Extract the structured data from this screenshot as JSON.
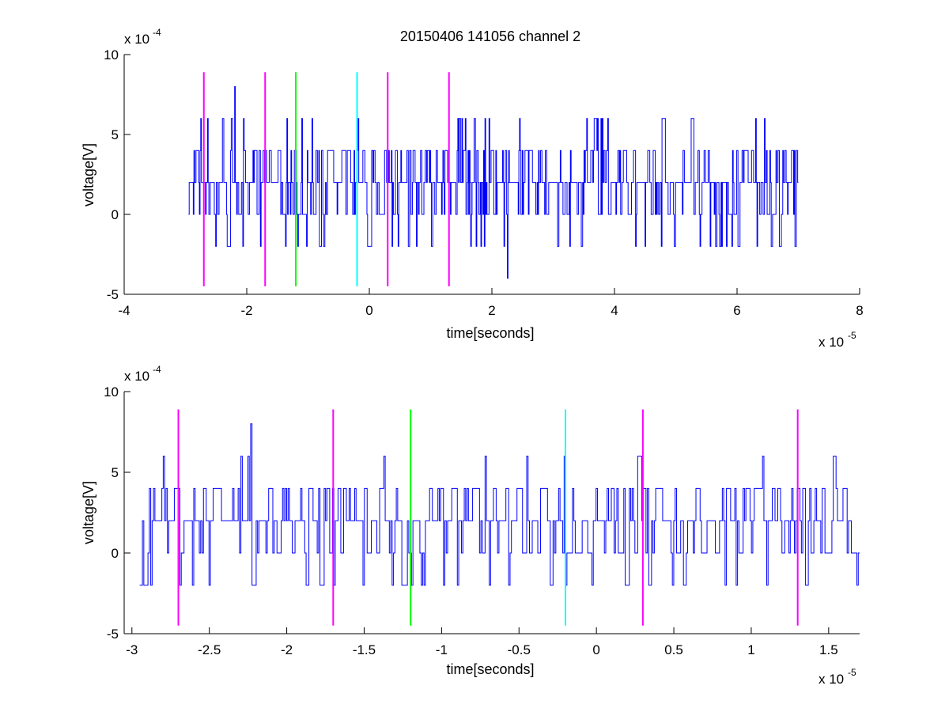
{
  "chart_data": [
    {
      "type": "line",
      "title": "20150406 141056 channel 2",
      "xlabel": "time[seconds]",
      "ylabel": "voltage[V]",
      "x_exponent_label": "x 10",
      "x_exponent": "-5",
      "y_exponent_label": "x 10",
      "y_exponent": "-4",
      "xlim": [
        -4,
        8
      ],
      "ylim": [
        -5,
        10
      ],
      "x_ticks": [
        -4,
        -2,
        0,
        2,
        4,
        6,
        8
      ],
      "y_ticks": [
        -5,
        0,
        5,
        10
      ],
      "x_tick_labels": [
        "-4",
        "-2",
        "0",
        "2",
        "4",
        "6",
        "8"
      ],
      "y_tick_labels": [
        "-5",
        "0",
        "5",
        "10"
      ],
      "grid": false,
      "series": [
        {
          "color": "#0000ff",
          "x_start": -2.95,
          "x_end": 7.0,
          "levels": [
            -4,
            -2,
            0,
            2,
            4,
            6,
            8
          ],
          "peaks": [
            {
              "x": -2.2,
              "y": 8
            },
            {
              "x": -2.25,
              "y": 6
            },
            {
              "x": -2.75,
              "y": 6
            },
            {
              "x": -1.35,
              "y": 6
            },
            {
              "x": -0.2,
              "y": 6
            },
            {
              "x": 2.45,
              "y": 6
            },
            {
              "x": 3.55,
              "y": 6
            },
            {
              "x": 3.8,
              "y": 6
            },
            {
              "x": 6.3,
              "y": 6
            },
            {
              "x": 2.25,
              "y": -4
            },
            {
              "x": 2.2,
              "y": -2
            },
            {
              "x": 6.95,
              "y": -2
            }
          ]
        }
      ],
      "markers": [
        {
          "x": -2.7,
          "color": "#ff00ff"
        },
        {
          "x": -1.7,
          "color": "#ff00ff"
        },
        {
          "x": -1.2,
          "color": "#00ff00"
        },
        {
          "x": -0.2,
          "color": "#00ffff"
        },
        {
          "x": 0.3,
          "color": "#ff00ff"
        },
        {
          "x": 1.3,
          "color": "#ff00ff"
        }
      ],
      "marker_ylim": [
        -4.5,
        8.9
      ]
    },
    {
      "type": "line",
      "title": "",
      "xlabel": "time[seconds]",
      "ylabel": "voltage[V]",
      "x_exponent_label": "x 10",
      "x_exponent": "-5",
      "y_exponent_label": "x 10",
      "y_exponent": "-4",
      "xlim": [
        -3.05,
        1.7
      ],
      "ylim": [
        -5,
        10
      ],
      "x_ticks": [
        -3,
        -2.5,
        -2,
        -1.5,
        -1,
        -0.5,
        0,
        0.5,
        1,
        1.5
      ],
      "y_ticks": [
        -5,
        0,
        5,
        10
      ],
      "x_tick_labels": [
        "-3",
        "-2.5",
        "-2",
        "-1.5",
        "-1",
        "-0.5",
        "0",
        "0.5",
        "1",
        "1.5"
      ],
      "y_tick_labels": [
        "-5",
        "0",
        "5",
        "10"
      ],
      "grid": false,
      "series": [
        {
          "color": "#0000ff",
          "x_start": -2.95,
          "x_end": 1.7,
          "levels": [
            -4,
            -2,
            0,
            2,
            4,
            6,
            8
          ],
          "peaks": [
            {
              "x": -2.23,
              "y": 8
            },
            {
              "x": -2.25,
              "y": 6
            },
            {
              "x": -2.8,
              "y": 6
            },
            {
              "x": -1.37,
              "y": 6
            },
            {
              "x": -0.21,
              "y": 6
            },
            {
              "x": -2.88,
              "y": -2
            },
            {
              "x": -2.5,
              "y": -2
            },
            {
              "x": -1.32,
              "y": -2
            },
            {
              "x": -0.57,
              "y": -2
            },
            {
              "x": 0.49,
              "y": -2
            },
            {
              "x": 0.9,
              "y": -2
            },
            {
              "x": 1.68,
              "y": -2
            }
          ]
        }
      ],
      "markers": [
        {
          "x": -2.7,
          "color": "#ff00ff"
        },
        {
          "x": -1.7,
          "color": "#ff00ff"
        },
        {
          "x": -1.2,
          "color": "#00ff00"
        },
        {
          "x": -0.2,
          "color": "#00ffff"
        },
        {
          "x": 0.3,
          "color": "#ff00ff"
        },
        {
          "x": 1.3,
          "color": "#ff00ff"
        }
      ],
      "marker_ylim": [
        -4.5,
        8.9
      ]
    }
  ]
}
